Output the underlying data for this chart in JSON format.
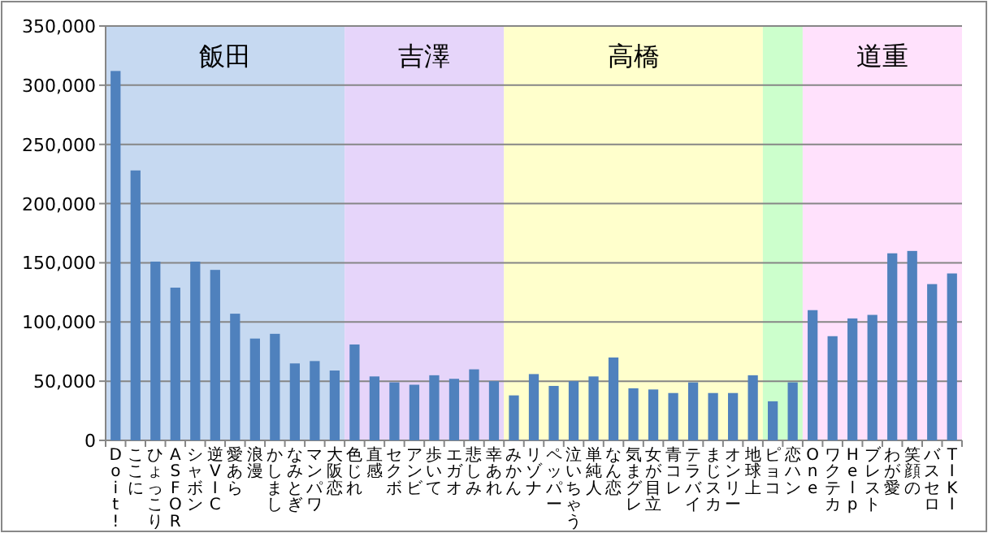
{
  "chart_data": {
    "type": "bar",
    "categories": [
      "Doit!",
      "ここに",
      "ひょっこり",
      "ASFOR",
      "シャボン",
      "逆VIC",
      "愛あら",
      "浪漫",
      "かしまし",
      "なみとぎ",
      "マンパワ",
      "大阪恋",
      "色じれ",
      "直感",
      "セクボ",
      "アンビ",
      "歩いて",
      "エガオ",
      "悲しみ",
      "幸あれ",
      "みかん",
      "リゾナ",
      "ペッパー",
      "泣いちゃう",
      "単純人",
      "なん恋",
      "気まグレ",
      "女が目立",
      "青コレ",
      "テラバイ",
      "まじスカ",
      "オンリー",
      "地球上",
      "ピョコ",
      "恋ハン",
      "One",
      "ワクテカ",
      "Help",
      "ブレスト",
      "わが愛",
      "笑顔の",
      "バスセロ",
      "TIKI"
    ],
    "values": [
      312000,
      228000,
      151000,
      129000,
      151000,
      144000,
      107000,
      86000,
      90000,
      65000,
      67000,
      59000,
      81000,
      54000,
      49000,
      47000,
      55000,
      52000,
      60000,
      50000,
      38000,
      56000,
      46000,
      50000,
      54000,
      70000,
      44000,
      43000,
      40000,
      49000,
      40000,
      40000,
      55000,
      33000,
      49000,
      110000,
      88000,
      103000,
      106000,
      158000,
      160000,
      132000,
      141000
    ],
    "color": "#4f81bd",
    "ylim": [
      0,
      350000
    ],
    "yticks": [
      {
        "value": 0,
        "label": "0"
      },
      {
        "value": 50000,
        "label": "50,000"
      },
      {
        "value": 100000,
        "label": "100,000"
      },
      {
        "value": 150000,
        "label": "150,000"
      },
      {
        "value": 200000,
        "label": "200,000"
      },
      {
        "value": 250000,
        "label": "250,000"
      },
      {
        "value": 300000,
        "label": "300,000"
      },
      {
        "value": 350000,
        "label": "350,000"
      }
    ],
    "grid": "y",
    "bands": [
      {
        "axis": "x",
        "from": "Doit!",
        "to": "大阪恋",
        "label": "飯田",
        "color": "#c6d9f1"
      },
      {
        "axis": "x",
        "from": "色じれ",
        "to": "幸あれ",
        "label": "吉澤",
        "color": "#e6d5fa"
      },
      {
        "axis": "x",
        "from": "みかん",
        "to": "地球上",
        "label": "高橋",
        "color": "#ffffcc"
      },
      {
        "axis": "x",
        "from": "ピョコ",
        "to": "恋ハン",
        "label": null,
        "color": "#ccffcc"
      },
      {
        "axis": "x",
        "from": "One",
        "to": "TIKI",
        "label": "道重",
        "color": "#ffe1fc"
      }
    ]
  }
}
